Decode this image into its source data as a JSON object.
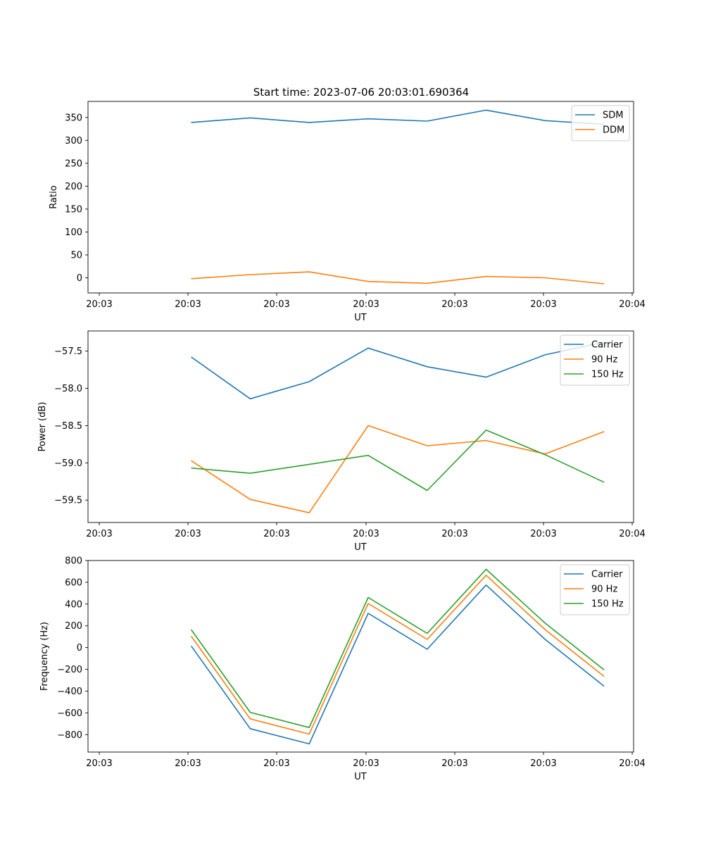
{
  "figure_title": "Start time: 2023-07-06 20:03:01.690364",
  "colors": {
    "blue": "#1f77b4",
    "orange": "#ff7f0e",
    "green": "#2ca02c"
  },
  "chart_data": [
    {
      "type": "line",
      "title": "Start time: 2023-07-06 20:03:01.690364",
      "xlabel": "UT",
      "ylabel": "Ratio",
      "x_tick_labels": [
        "20:03",
        "20:03",
        "20:03",
        "20:03",
        "20:03",
        "20:03",
        "20:04"
      ],
      "x": [
        1,
        2,
        3,
        4,
        5,
        6,
        7,
        8
      ],
      "xlim": [
        -0.75,
        8.5
      ],
      "ylim": [
        -33,
        385
      ],
      "yticks": [
        0,
        50,
        100,
        150,
        200,
        250,
        300,
        350
      ],
      "y_tick_labels": [
        "0",
        "50",
        "100",
        "150",
        "200",
        "250",
        "300",
        "350"
      ],
      "legend": "top-right",
      "series": [
        {
          "name": "SDM",
          "color": "#1f77b4",
          "values": [
            339,
            349,
            339,
            347,
            342,
            366,
            343,
            335
          ]
        },
        {
          "name": "DDM",
          "color": "#ff7f0e",
          "values": [
            -2,
            7,
            13,
            -8,
            -12,
            3,
            0,
            -13
          ]
        }
      ]
    },
    {
      "type": "line",
      "xlabel": "UT",
      "ylabel": "Power (dB)",
      "x_tick_labels": [
        "20:03",
        "20:03",
        "20:03",
        "20:03",
        "20:03",
        "20:03",
        "20:04"
      ],
      "x": [
        1,
        2,
        3,
        4,
        5,
        6,
        7,
        8
      ],
      "xlim": [
        -0.75,
        8.5
      ],
      "ylim": [
        -59.8,
        -57.23
      ],
      "yticks": [
        -57.5,
        -58.0,
        -58.5,
        -59.0,
        -59.5
      ],
      "y_tick_labels": [
        "−57.5",
        "−58.0",
        "−58.5",
        "−59.0",
        "−59.5"
      ],
      "legend": "top-right",
      "series": [
        {
          "name": "Carrier",
          "color": "#1f77b4",
          "values": [
            -57.58,
            -58.14,
            -57.91,
            -57.46,
            -57.71,
            -57.85,
            -57.55,
            -57.38
          ]
        },
        {
          "name": "90 Hz",
          "color": "#ff7f0e",
          "values": [
            -58.97,
            -59.49,
            -59.67,
            -58.5,
            -58.77,
            -58.7,
            -58.88,
            -58.58
          ]
        },
        {
          "name": "150 Hz",
          "color": "#2ca02c",
          "values": [
            -59.07,
            -59.14,
            -59.02,
            -58.9,
            -59.37,
            -58.56,
            -58.89,
            -59.26
          ]
        }
      ]
    },
    {
      "type": "line",
      "xlabel": "UT",
      "ylabel": "Frequency (Hz)",
      "x_tick_labels": [
        "20:03",
        "20:03",
        "20:03",
        "20:03",
        "20:03",
        "20:03",
        "20:04"
      ],
      "x": [
        1,
        2,
        3,
        4,
        5,
        6,
        7,
        8
      ],
      "xlim": [
        -0.75,
        8.5
      ],
      "ylim": [
        -960,
        800
      ],
      "yticks": [
        800,
        600,
        400,
        200,
        0,
        -200,
        -400,
        -600,
        -800
      ],
      "y_tick_labels": [
        "800",
        "600",
        "400",
        "200",
        "0",
        "−200",
        "−400",
        "−600",
        "−800"
      ],
      "legend": "top-right",
      "series": [
        {
          "name": "Carrier",
          "color": "#1f77b4",
          "values": [
            15,
            -745,
            -885,
            315,
            -15,
            575,
            75,
            -355
          ]
        },
        {
          "name": "90 Hz",
          "color": "#ff7f0e",
          "values": [
            105,
            -655,
            -795,
            405,
            75,
            665,
            165,
            -265
          ]
        },
        {
          "name": "150 Hz",
          "color": "#2ca02c",
          "values": [
            165,
            -595,
            -735,
            460,
            130,
            720,
            225,
            -205
          ]
        }
      ]
    }
  ]
}
